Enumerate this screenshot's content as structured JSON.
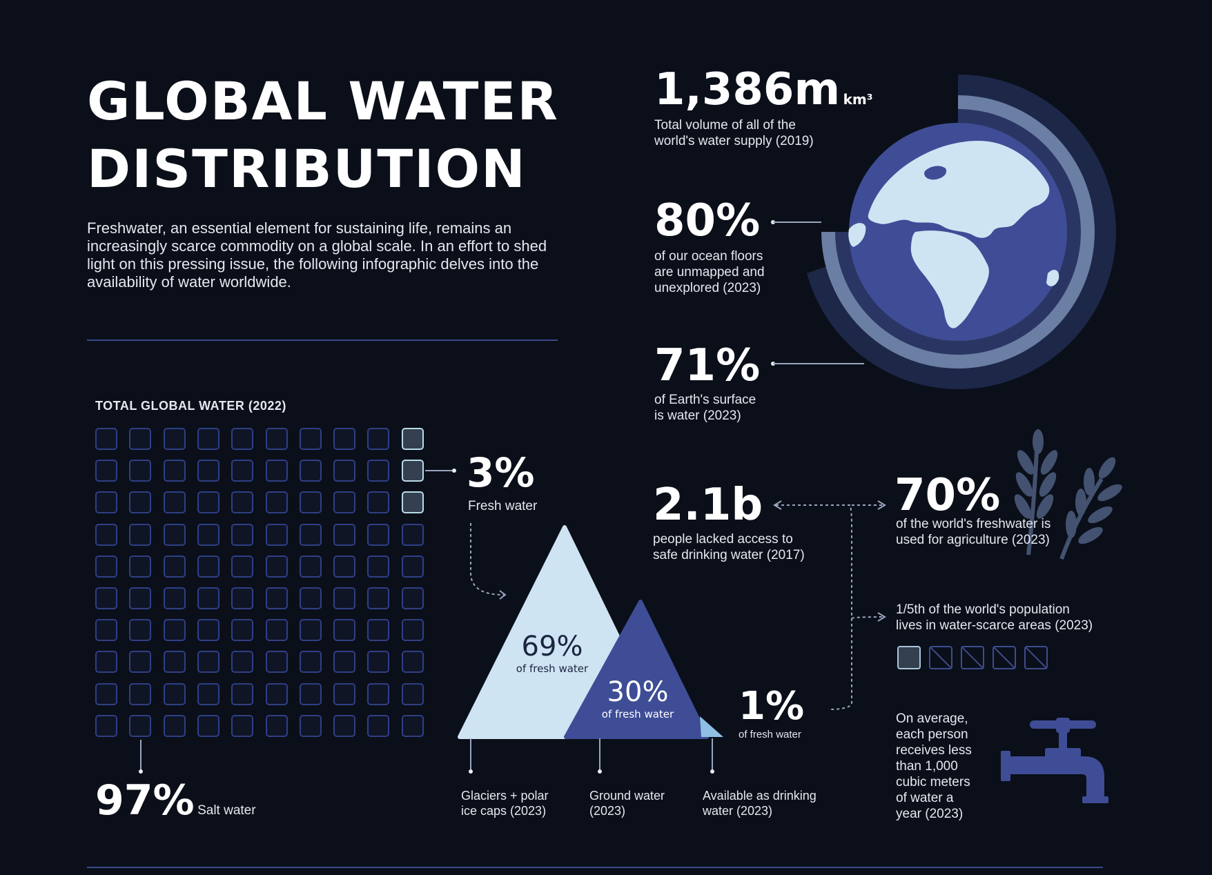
{
  "header": {
    "title_line1": "GLOBAL WATER",
    "title_line2": "DISTRIBUTION",
    "intro": "Freshwater, an essential element for sustaining life, remains an increasingly scarce commodity on a global scale. In an effort to shed light on this pressing issue, the following infographic delves into the availability of water worldwide."
  },
  "globe_stats": {
    "volume_value": "1,386m",
    "volume_unit": "km³",
    "volume_caption_1": "Total volume of all of the",
    "volume_caption_2": "world's water supply (2019)",
    "ocean_value": "80%",
    "ocean_caption_1": "of our ocean floors",
    "ocean_caption_2": "are unmapped and",
    "ocean_caption_3": "unexplored (2023)",
    "surface_value": "71%",
    "surface_caption_1": "of Earth's surface",
    "surface_caption_2": "is water (2023)"
  },
  "global_water": {
    "section_label": "TOTAL GLOBAL WATER (2022)",
    "total_squares": 100,
    "fresh_squares": 3,
    "fresh_value": "3%",
    "fresh_label": "Fresh water",
    "salt_value": "97%",
    "salt_label": "Salt water"
  },
  "fresh_breakdown": {
    "glaciers_pct": "69%",
    "glaciers_sub": "of fresh water",
    "glaciers_label_1": "Glaciers + polar",
    "glaciers_label_2": "ice caps (2023)",
    "ground_pct": "30%",
    "ground_sub": "of fresh water",
    "ground_label_1": "Ground water",
    "ground_label_2": "(2023)",
    "drinking_pct": "1%",
    "drinking_sub": "of fresh water",
    "drinking_label_1": "Available as drinking",
    "drinking_label_2": "water (2023)"
  },
  "access": {
    "people_value": "2.1b",
    "people_caption_1": "people lacked access to",
    "people_caption_2": "safe drinking water (2017)",
    "agri_value": "70%",
    "agri_caption_1": "of the world's freshwater is",
    "agri_caption_2": "used for agriculture (2023)",
    "scarce_caption_1": "1/5th of the world's population",
    "scarce_caption_2": "lives in water-scarce areas (2023)",
    "scarce_filled": 1,
    "scarce_total": 5,
    "tap_caption": [
      "On average,",
      "each person",
      "receives less",
      "than 1,000",
      "cubic meters",
      "of water a",
      "year (2023)"
    ]
  },
  "colors": {
    "background": "#0b0f19",
    "navy": "#3e4d96",
    "ice": "#cfe4f3",
    "highlight": "#b8dcea"
  },
  "icons": [
    "globe-icon",
    "wheat-icon",
    "faucet-icon"
  ]
}
